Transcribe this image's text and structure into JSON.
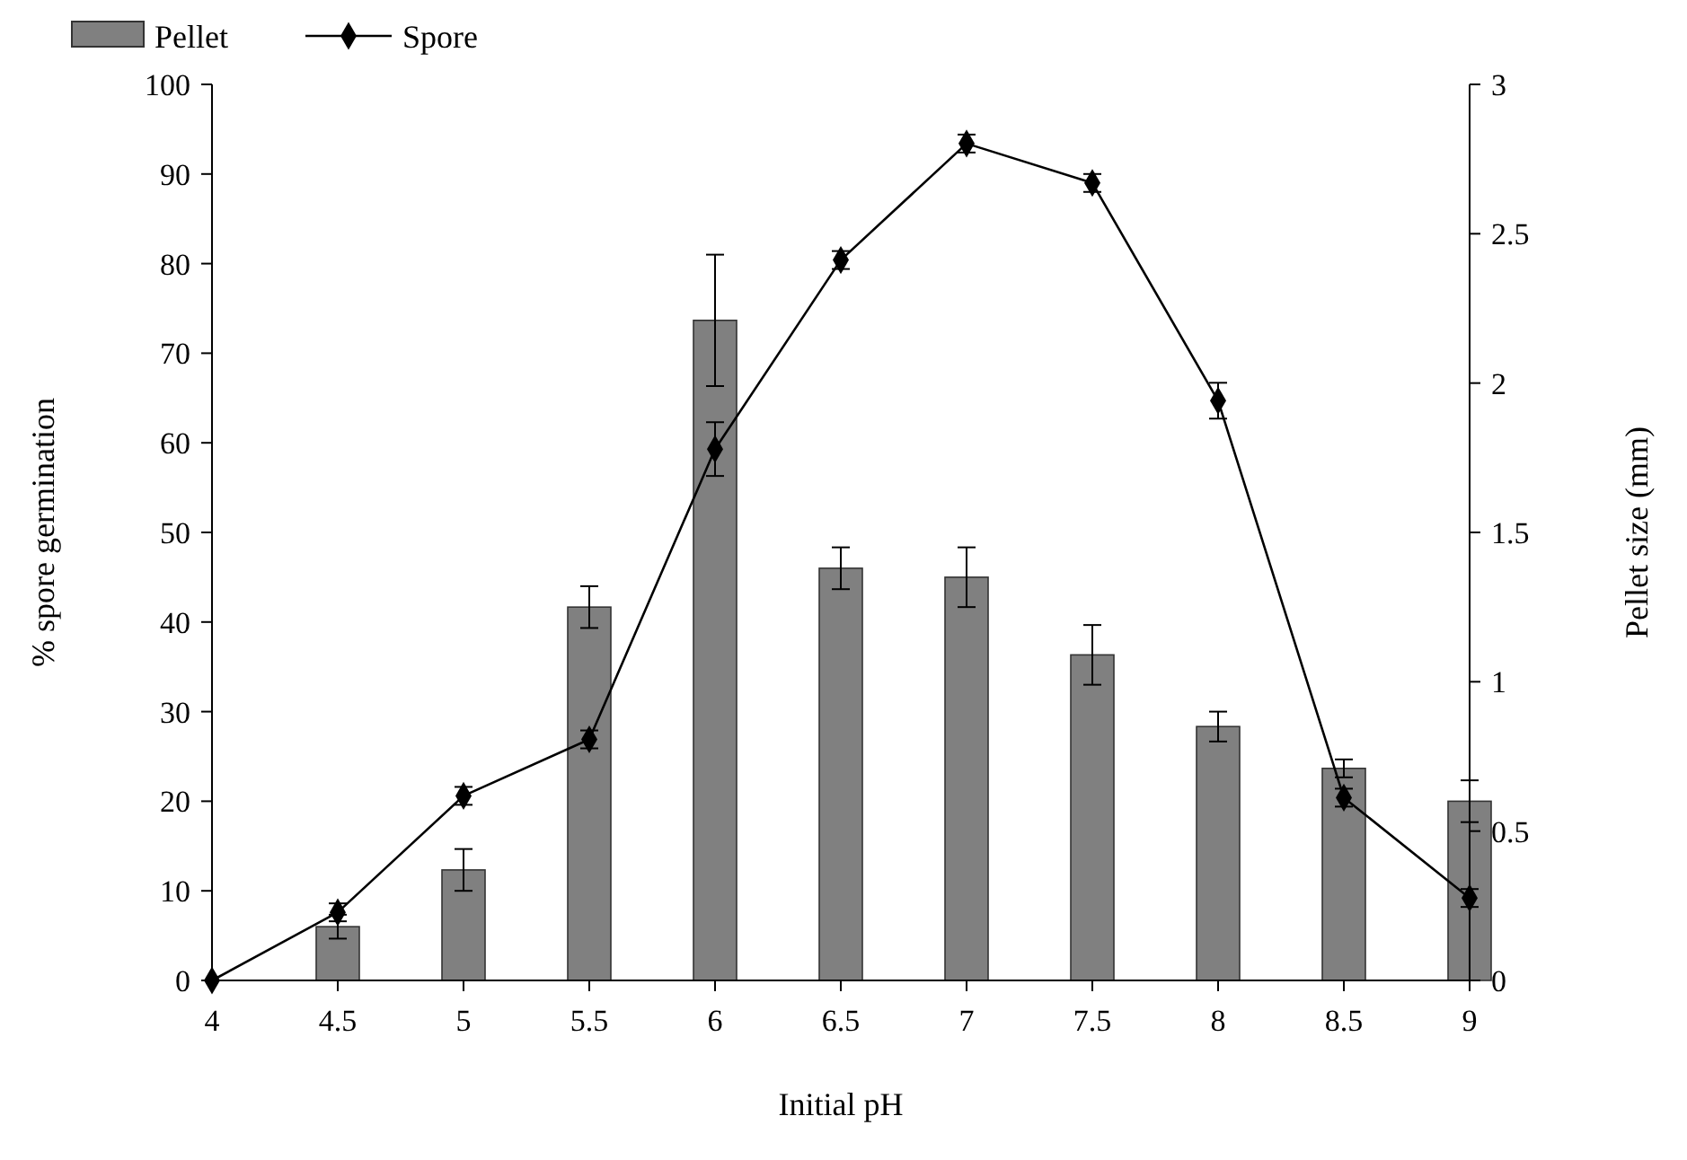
{
  "chart_data": {
    "type": "bar",
    "xlabel": "Initial pH",
    "ylabel": "% spore germination",
    "y2label": "Pellet size (mm)",
    "categories": [
      "4",
      "4.5",
      "5",
      "5.5",
      "6",
      "6.5",
      "7",
      "7.5",
      "8",
      "8.5",
      "9"
    ],
    "series": [
      {
        "name": "Pellet",
        "axis": "y2",
        "color": "#808080",
        "values": [
          0,
          0.18,
          0.37,
          1.25,
          2.21,
          1.38,
          1.35,
          1.09,
          0.85,
          0.71,
          0.6
        ],
        "errors": [
          null,
          0.04,
          0.07,
          0.07,
          0.22,
          0.07,
          0.1,
          0.1,
          0.05,
          0.03,
          0.07
        ]
      },
      {
        "name": "Spore",
        "type": "line",
        "axis": "y",
        "color": "#000000",
        "marker": "diamond",
        "values": [
          0,
          7.6,
          20.6,
          26.9,
          59.3,
          80.4,
          93.4,
          89,
          64.7,
          20.4,
          9.2
        ],
        "errors": [
          null,
          1,
          1,
          1,
          3,
          1,
          1,
          1,
          2,
          1,
          1
        ]
      }
    ],
    "ylim": [
      0,
      100
    ],
    "yticks": [
      0,
      10,
      20,
      30,
      40,
      50,
      60,
      70,
      80,
      90,
      100
    ],
    "y2lim": [
      0,
      3
    ],
    "y2ticks": [
      0,
      0.5,
      1,
      1.5,
      2,
      2.5,
      3
    ],
    "legend": "top left",
    "grid": false
  }
}
